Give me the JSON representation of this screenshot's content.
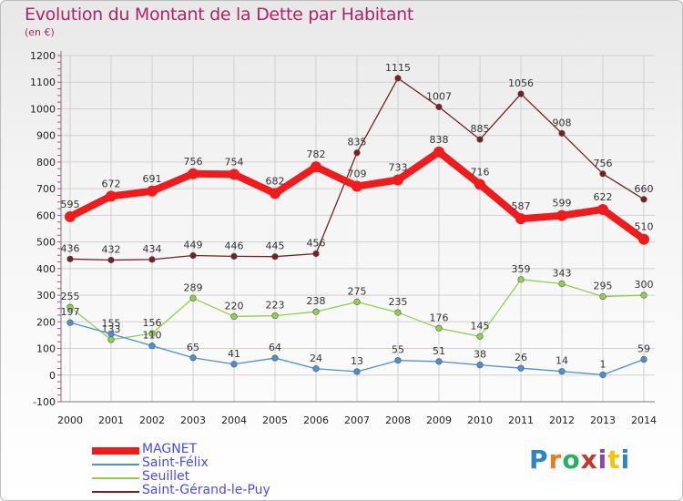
{
  "header": {
    "title": "Evolution du Montant de la Dette par Habitant",
    "subtitle": "(en €)"
  },
  "logo": {
    "text": "Proxiti",
    "colors": [
      "#2e86c1",
      "#e67e22",
      "#27ae60",
      "#c0392b",
      "#8e44ad",
      "#f1c40f",
      "#2e86c1"
    ]
  },
  "chart_data": {
    "type": "line",
    "title": "Evolution du Montant de la Dette par Habitant",
    "subtitle": "(en €)",
    "x": [
      "2000",
      "2001",
      "2002",
      "2003",
      "2004",
      "2005",
      "2006",
      "2007",
      "2008",
      "2009",
      "2010",
      "2011",
      "2012",
      "2013",
      "2014"
    ],
    "ylim": [
      -100,
      1200
    ],
    "yticks": [
      -100,
      0,
      100,
      200,
      300,
      400,
      500,
      600,
      700,
      800,
      900,
      1000,
      1100,
      1200
    ],
    "grid": true,
    "legend_position": "bottom-left",
    "series": [
      {
        "name": "MAGNET",
        "color": "#ee1c1c",
        "values": [
          595,
          672,
          691,
          756,
          754,
          682,
          782,
          709,
          733,
          838,
          716,
          587,
          599,
          622,
          510
        ]
      },
      {
        "name": "Saint-Félix",
        "color": "#4a90d9",
        "values": [
          197,
          155,
          110,
          65,
          41,
          64,
          24,
          13,
          55,
          51,
          38,
          26,
          14,
          1,
          59
        ]
      },
      {
        "name": "Seuillet",
        "color": "#8fd14f",
        "values": [
          255,
          133,
          156,
          289,
          220,
          223,
          238,
          275,
          235,
          176,
          145,
          359,
          343,
          295,
          300
        ]
      },
      {
        "name": "Saint-Gérand-le-Puy",
        "color": "#7a1f22",
        "values": [
          436,
          432,
          434,
          449,
          446,
          445,
          456,
          835,
          1115,
          1007,
          885,
          1056,
          908,
          756,
          660
        ]
      }
    ]
  }
}
